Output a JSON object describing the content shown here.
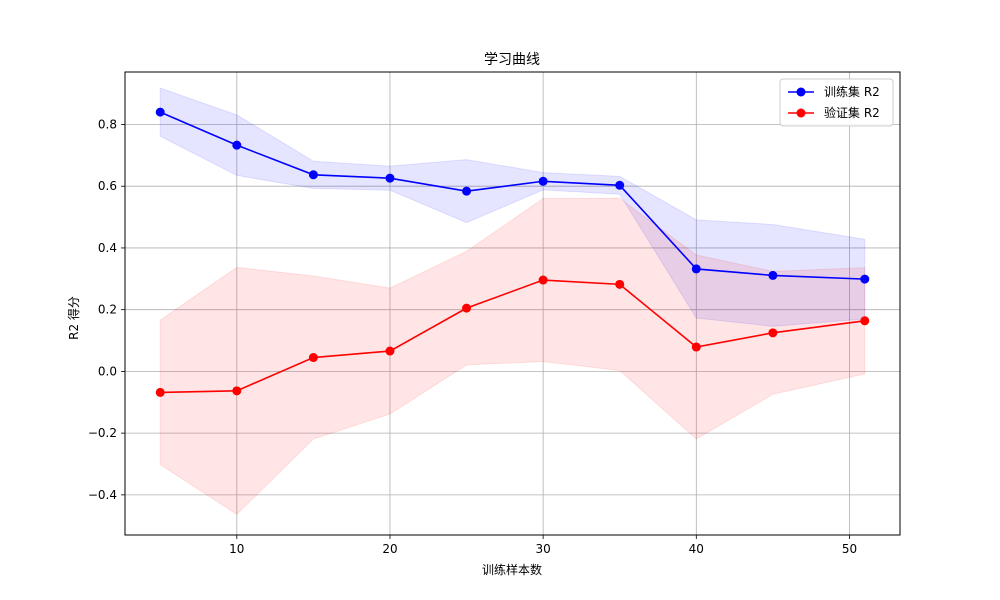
{
  "chart_data": {
    "type": "line",
    "title": "学习曲线",
    "xlabel": "训练样本数",
    "ylabel": "R2 得分",
    "xlim": [
      2.7,
      53.3
    ],
    "ylim": [
      -0.53,
      0.97
    ],
    "xticks": [
      10,
      20,
      30,
      40,
      50
    ],
    "xtick_labels": [
      "10",
      "20",
      "30",
      "40",
      "50"
    ],
    "yticks": [
      -0.4,
      -0.2,
      0.0,
      0.2,
      0.4,
      0.6,
      0.8
    ],
    "ytick_labels": [
      "−0.4",
      "−0.2",
      "0.0",
      "0.2",
      "0.4",
      "0.6",
      "0.8"
    ],
    "grid": true,
    "legend_position": "top-right",
    "x": [
      5,
      10,
      15,
      20,
      25,
      30,
      35,
      40,
      45,
      51
    ],
    "series": [
      {
        "name": "训练集 R2",
        "color": "#0000ff",
        "band_color": "#0000ff",
        "values": [
          0.84,
          0.733,
          0.637,
          0.626,
          0.584,
          0.616,
          0.603,
          0.332,
          0.311,
          0.299
        ],
        "lower": [
          0.762,
          0.635,
          0.593,
          0.587,
          0.482,
          0.588,
          0.574,
          0.173,
          0.146,
          0.17
        ],
        "upper": [
          0.918,
          0.831,
          0.681,
          0.665,
          0.686,
          0.644,
          0.632,
          0.491,
          0.476,
          0.428
        ]
      },
      {
        "name": "验证集 R2",
        "color": "#ff0000",
        "band_color": "#ff0000",
        "values": [
          -0.068,
          -0.063,
          0.045,
          0.066,
          0.205,
          0.296,
          0.282,
          0.079,
          0.125,
          0.164
        ],
        "lower": [
          -0.302,
          -0.463,
          -0.219,
          -0.138,
          0.021,
          0.032,
          0.003,
          -0.219,
          -0.074,
          -0.008
        ],
        "upper": [
          0.166,
          0.337,
          0.309,
          0.27,
          0.389,
          0.56,
          0.561,
          0.377,
          0.324,
          0.336
        ]
      }
    ]
  }
}
